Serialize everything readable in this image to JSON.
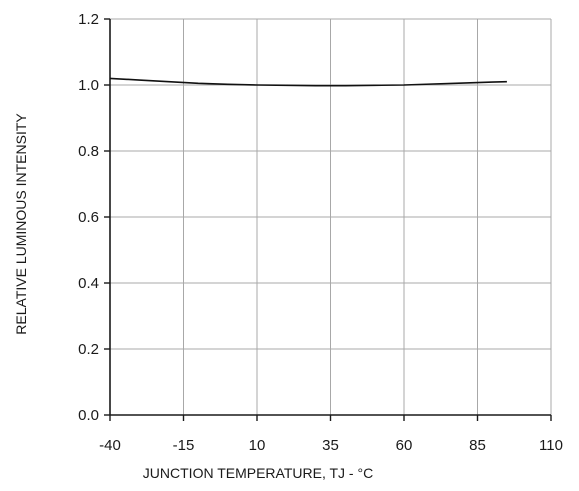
{
  "chart_data": {
    "type": "line",
    "title": "",
    "xlabel": "JUNCTION TEMPERATURE, TJ - °C",
    "ylabel": "RELATIVE LUMINOUS INTENSITY",
    "xlim": [
      -40,
      110
    ],
    "ylim": [
      0.0,
      1.2
    ],
    "x_ticks": [
      -40,
      -15,
      10,
      35,
      60,
      85,
      110
    ],
    "x_tick_labels": [
      "-40",
      "-15",
      "10",
      "35",
      "60",
      "85",
      "110"
    ],
    "y_ticks": [
      0.0,
      0.2,
      0.4,
      0.6,
      0.8,
      1.0,
      1.2
    ],
    "y_tick_labels": [
      "0.0",
      "0.2",
      "0.4",
      "0.6",
      "0.8",
      "1.0",
      "1.2"
    ],
    "grid": true,
    "series": [
      {
        "x": [
          -40,
          -30,
          -20,
          -10,
          0,
          10,
          20,
          30,
          40,
          50,
          60,
          70,
          80,
          90,
          95
        ],
        "y": [
          1.02,
          1.015,
          1.01,
          1.005,
          1.002,
          1.0,
          0.999,
          0.998,
          0.998,
          0.999,
          1.0,
          1.003,
          1.006,
          1.009,
          1.01
        ]
      }
    ],
    "colors": {
      "line": "#111111",
      "grid": "#a8a8a8",
      "axis": "#1a1a1a"
    }
  }
}
